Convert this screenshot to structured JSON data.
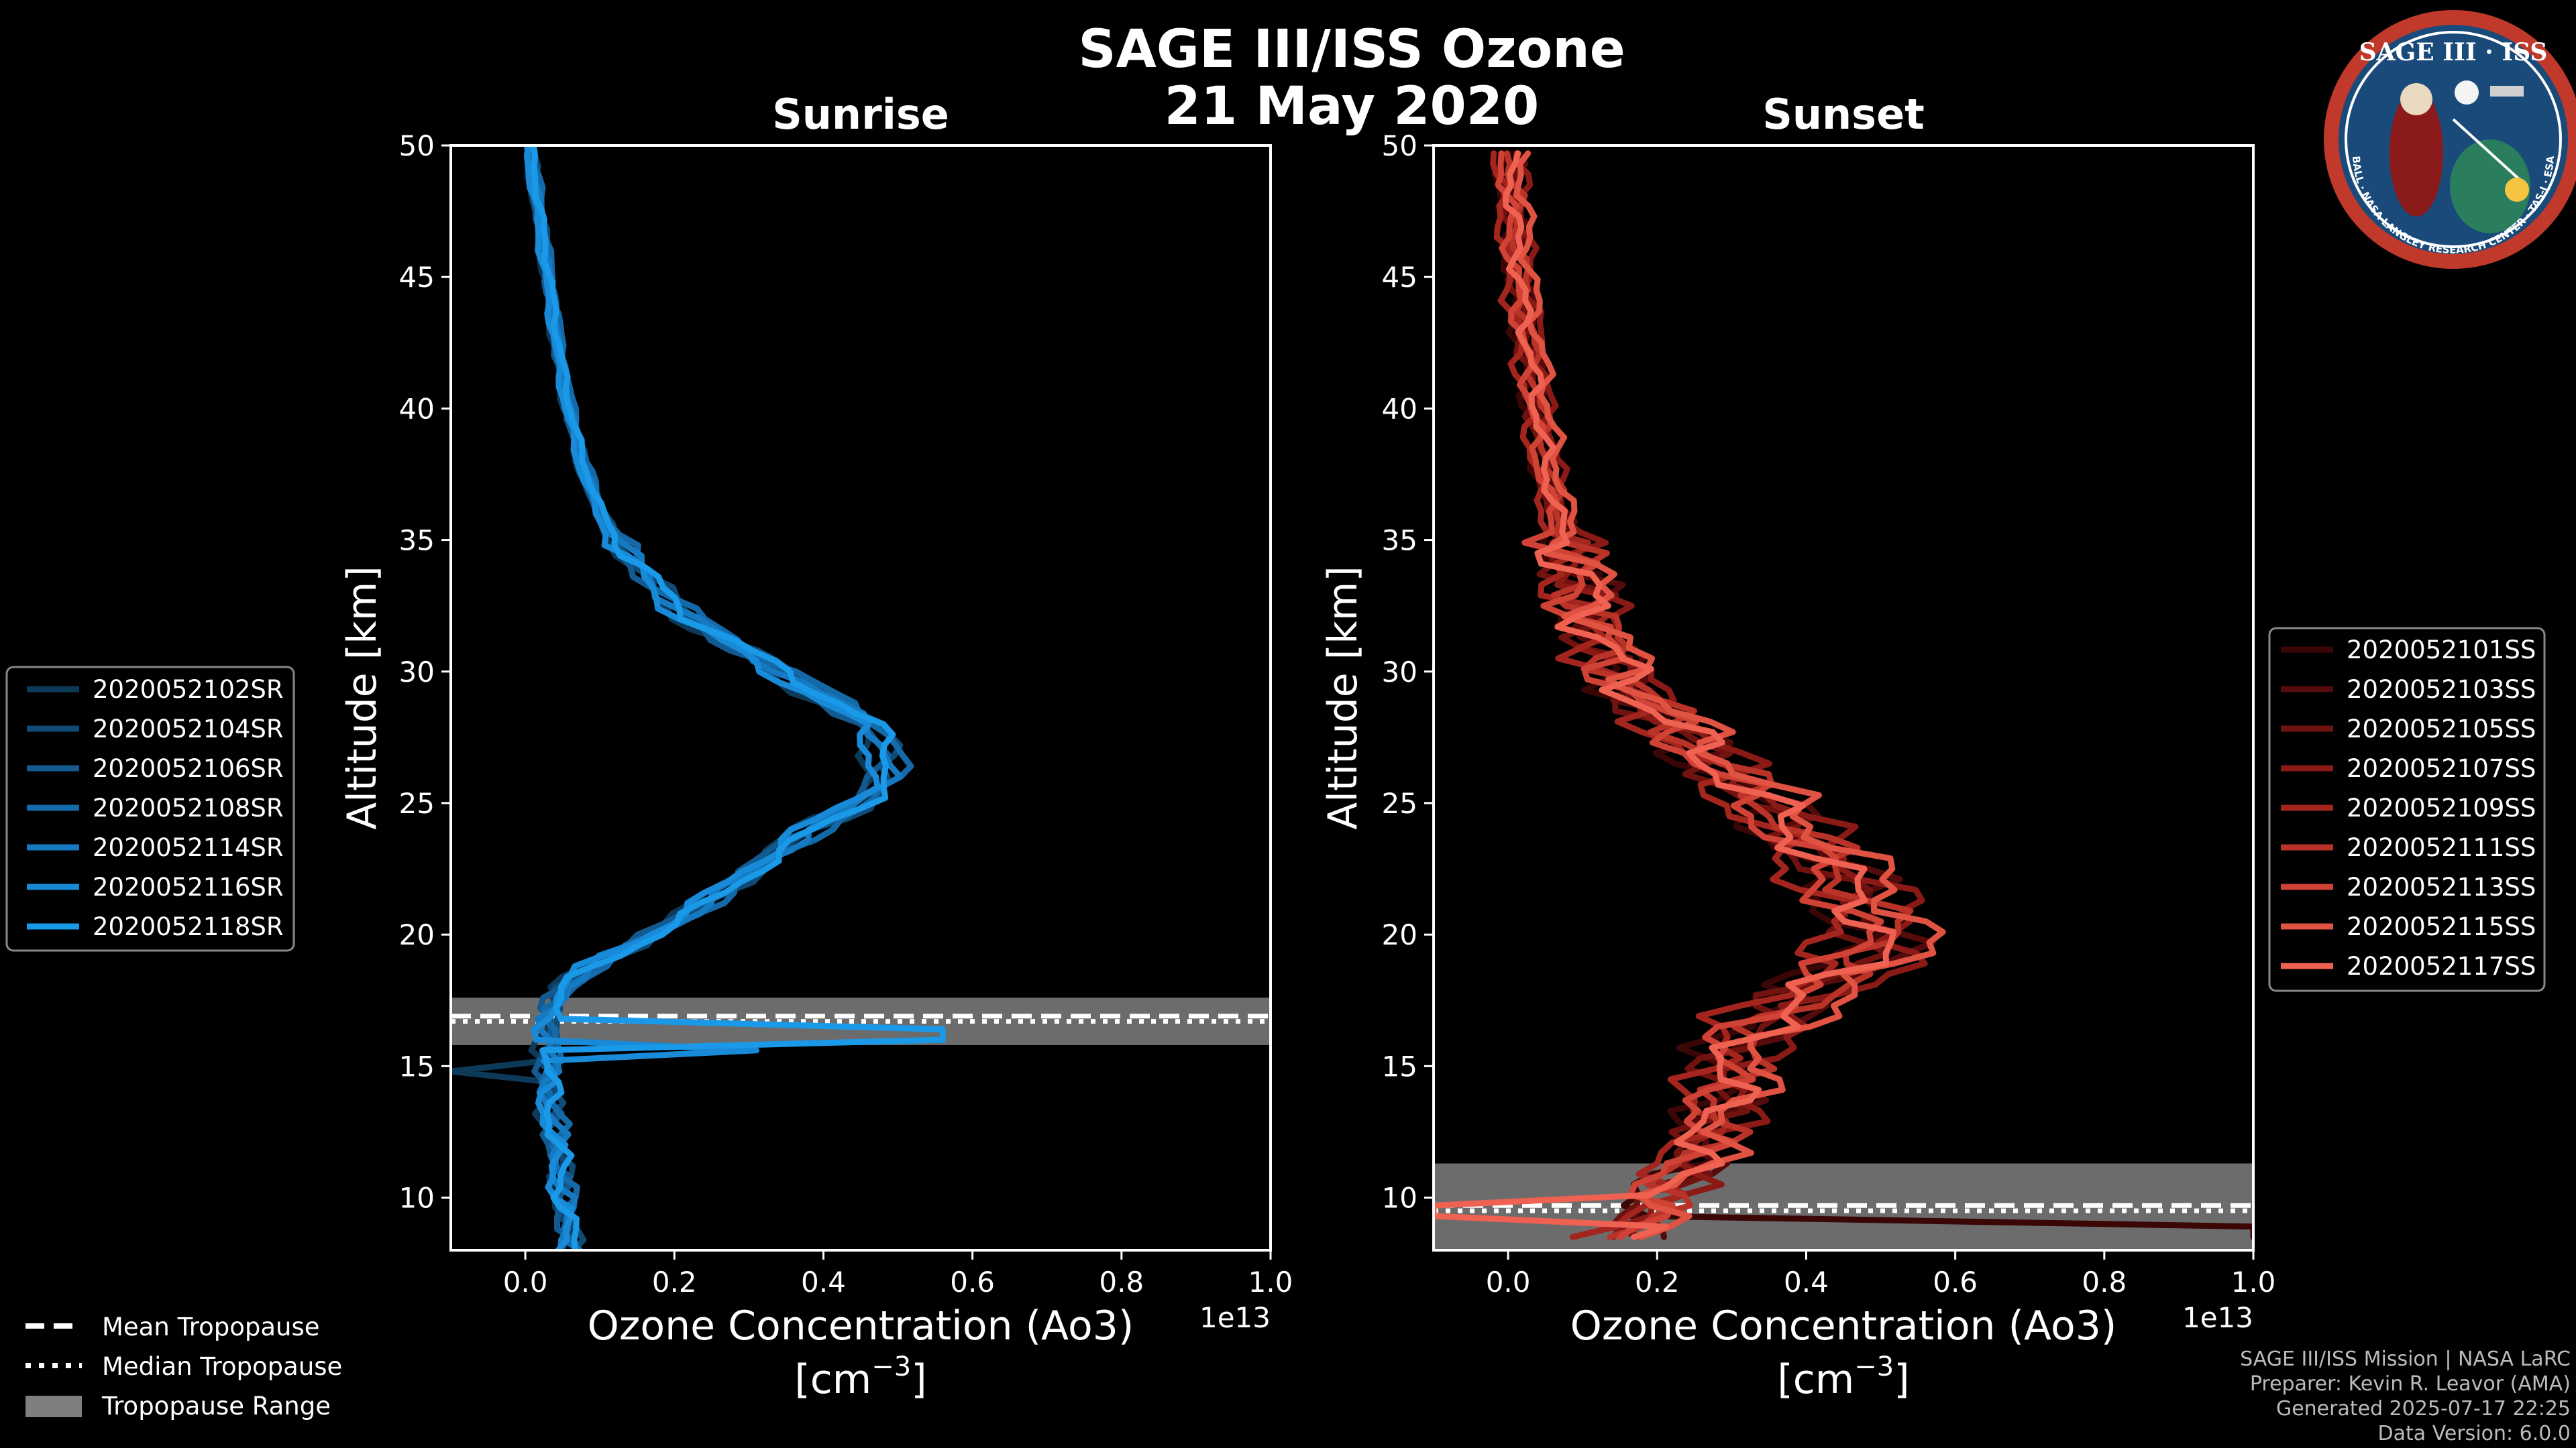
{
  "figure": {
    "title_line1": "SAGE III/ISS Ozone",
    "title_line2": "21 May 2020",
    "logo": {
      "name": "sage-iii-iss-mission-patch",
      "top_text": "SAGE III · ISS",
      "ring_text": "BALL · NASA LANGLEY RESEARCH CENTER · TAS-I · ESA",
      "ring_color": "#c0392b",
      "inner_color": "#1a4a7a"
    },
    "credits": [
      "SAGE III/ISS Mission | NASA LaRC",
      "Preparer: Kevin R. Leavor (AMA)",
      "Generated 2025-07-17 22:25",
      "Data Version: 6.0.0"
    ],
    "tropopause_legend": [
      {
        "label": "Mean Tropopause",
        "style": "dashed",
        "color": "#ffffff"
      },
      {
        "label": "Median Tropopause",
        "style": "dotted",
        "color": "#ffffff"
      },
      {
        "label": "Tropopause Range",
        "style": "patch",
        "color": "#7f7f7f"
      }
    ]
  },
  "chart_data": [
    {
      "type": "line",
      "title": "Sunrise",
      "xlabel": "Ozone Concentration (Ao3)",
      "xlabel_unit_base": "[cm",
      "xlabel_unit_exp": "−3",
      "xlabel_unit_close": "]",
      "ylabel": "Altitude [km]",
      "xlim": [
        -0.1,
        1.0
      ],
      "ylim": [
        8,
        50
      ],
      "x_scale_label": "1e13",
      "x_ticks": [
        0.0,
        0.2,
        0.4,
        0.6,
        0.8,
        1.0
      ],
      "x_tick_labels": [
        "0.0",
        "0.2",
        "0.4",
        "0.6",
        "0.8",
        "1.0"
      ],
      "y_ticks": [
        10,
        15,
        20,
        25,
        30,
        35,
        40,
        45,
        50
      ],
      "y_tick_labels": [
        "10",
        "15",
        "20",
        "25",
        "30",
        "35",
        "40",
        "45",
        "50"
      ],
      "tropopause": {
        "mean": 16.9,
        "median": 16.7,
        "range": [
          15.8,
          17.6
        ]
      },
      "legend_position": "outside-left",
      "series": [
        {
          "name": "2020052102SR",
          "color": "#0e3a5a",
          "offset": -0.012,
          "phase": 0.0
        },
        {
          "name": "2020052104SR",
          "color": "#104a75",
          "offset": 0.01,
          "phase": 1.1
        },
        {
          "name": "2020052106SR",
          "color": "#125a8f",
          "offset": -0.005,
          "phase": 2.2
        },
        {
          "name": "2020052108SR",
          "color": "#146aa9",
          "offset": 0.015,
          "phase": 3.3
        },
        {
          "name": "2020052114SR",
          "color": "#167ac2",
          "offset": 0.004,
          "phase": 4.4
        },
        {
          "name": "2020052116SR",
          "color": "#188ad8",
          "offset": -0.01,
          "phase": 5.5
        },
        {
          "name": "2020052118SR",
          "color": "#1a99e8",
          "offset": 0.007,
          "phase": 6.6
        }
      ],
      "profile": {
        "alt": [
          8,
          9,
          10,
          11,
          12,
          13,
          14,
          15,
          16,
          17,
          18,
          19,
          20,
          21,
          22,
          23,
          24,
          25,
          26,
          27,
          28,
          29,
          30,
          31,
          32,
          33,
          34,
          35,
          36,
          38,
          40,
          42,
          44,
          46,
          48,
          50
        ],
        "val": [
          0.06,
          0.055,
          0.05,
          0.045,
          0.04,
          0.035,
          0.03,
          0.03,
          0.03,
          0.03,
          0.05,
          0.1,
          0.17,
          0.23,
          0.28,
          0.33,
          0.38,
          0.45,
          0.48,
          0.48,
          0.46,
          0.4,
          0.34,
          0.28,
          0.22,
          0.18,
          0.15,
          0.12,
          0.1,
          0.075,
          0.058,
          0.045,
          0.035,
          0.025,
          0.015,
          0.005
        ]
      },
      "spikes": [
        {
          "series": "2020052118SR",
          "alt_start": 16.2,
          "alt_end": 16.6,
          "value": 0.56
        },
        {
          "series": "2020052116SR",
          "alt_start": 15.8,
          "alt_end": 15.6,
          "value": 0.31
        },
        {
          "series": "2020052102SR",
          "alt_start": 15.0,
          "alt_end": 14.7,
          "value": -0.1
        }
      ]
    },
    {
      "type": "line",
      "title": "Sunset",
      "xlabel": "Ozone Concentration (Ao3)",
      "xlabel_unit_base": "[cm",
      "xlabel_unit_exp": "−3",
      "xlabel_unit_close": "]",
      "ylabel": "Altitude [km]",
      "xlim": [
        -0.1,
        1.0
      ],
      "ylim": [
        8,
        50
      ],
      "x_scale_label": "1e13",
      "x_ticks": [
        0.0,
        0.2,
        0.4,
        0.6,
        0.8,
        1.0
      ],
      "x_tick_labels": [
        "0.0",
        "0.2",
        "0.4",
        "0.6",
        "0.8",
        "1.0"
      ],
      "y_ticks": [
        10,
        15,
        20,
        25,
        30,
        35,
        40,
        45,
        50
      ],
      "y_tick_labels": [
        "10",
        "15",
        "20",
        "25",
        "30",
        "35",
        "40",
        "45",
        "50"
      ],
      "tropopause": {
        "mean": 9.7,
        "median": 9.5,
        "range": [
          8.0,
          11.3
        ]
      },
      "legend_position": "outside-right",
      "series": [
        {
          "name": "2020052101SS",
          "color": "#3a0606",
          "offset": -0.03,
          "phase": 0.0
        },
        {
          "name": "2020052103SS",
          "color": "#550b0b",
          "offset": 0.02,
          "phase": 0.9
        },
        {
          "name": "2020052105SS",
          "color": "#701210",
          "offset": -0.015,
          "phase": 1.8
        },
        {
          "name": "2020052107SS",
          "color": "#8a1a16",
          "offset": 0.035,
          "phase": 2.7
        },
        {
          "name": "2020052109SS",
          "color": "#a3251e",
          "offset": -0.04,
          "phase": 3.6
        },
        {
          "name": "2020052111SS",
          "color": "#ba3328",
          "offset": 0.01,
          "phase": 4.5
        },
        {
          "name": "2020052113SS",
          "color": "#cf4235",
          "offset": -0.02,
          "phase": 5.4
        },
        {
          "name": "2020052115SS",
          "color": "#e05242",
          "offset": 0.04,
          "phase": 6.3
        },
        {
          "name": "2020052117SS",
          "color": "#ef6150",
          "offset": 0.0,
          "phase": 7.2
        }
      ],
      "profile": {
        "alt": [
          8.5,
          9,
          10,
          11,
          12,
          13,
          14,
          15,
          16,
          17,
          18,
          19,
          20,
          21,
          22,
          23,
          24,
          25,
          26,
          27,
          28,
          29,
          30,
          31,
          32,
          33,
          34,
          35,
          36,
          38,
          40,
          42,
          44,
          46,
          48,
          50
        ],
        "val": [
          0.15,
          0.18,
          0.2,
          0.23,
          0.26,
          0.28,
          0.29,
          0.3,
          0.32,
          0.36,
          0.42,
          0.48,
          0.5,
          0.48,
          0.45,
          0.42,
          0.38,
          0.34,
          0.3,
          0.26,
          0.22,
          0.18,
          0.15,
          0.13,
          0.115,
          0.1,
          0.085,
          0.075,
          0.065,
          0.05,
          0.04,
          0.03,
          0.02,
          0.012,
          0.006,
          0.0
        ]
      },
      "spikes": [
        {
          "series": "2020052101SS",
          "alt_start": 8.8,
          "alt_end": 8.3,
          "value": 1.0
        },
        {
          "series": "2020052117SS",
          "alt_start": 9.4,
          "alt_end": 9.6,
          "value": -0.1
        }
      ]
    }
  ]
}
